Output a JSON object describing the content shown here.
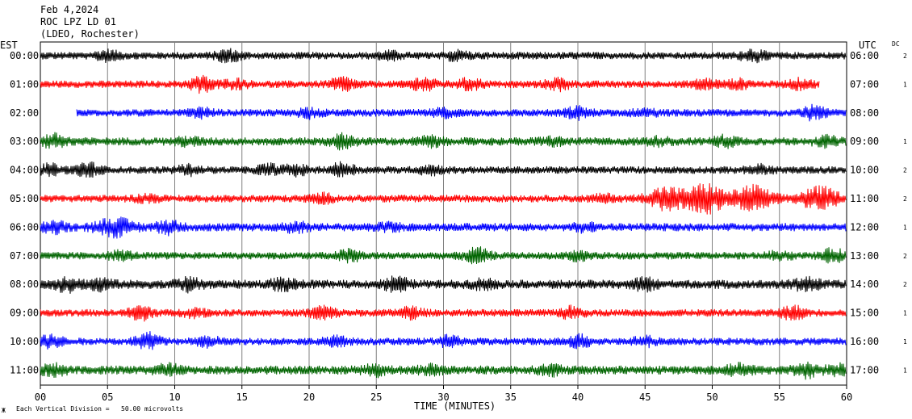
{
  "header": {
    "date": "Feb 4,2024",
    "station": "ROC LPZ LD 01",
    "network": "(LDEO, Rochester)"
  },
  "left_axis_label": "EST",
  "right_axis_label": "UTC",
  "dc_label": "DC",
  "footer_note": "Each Vertical Division =   50.00 microvolts",
  "footer_mark": "Ж",
  "colors": {
    "black": "#000000",
    "red": "#ff0000",
    "blue": "#0000ff",
    "green": "#006400",
    "grid": "#808080"
  },
  "chart_data": {
    "type": "line",
    "title": "",
    "xlabel": "TIME (MINUTES)",
    "xlim": [
      0,
      60
    ],
    "xticks": [
      "00",
      "05",
      "10",
      "15",
      "20",
      "25",
      "30",
      "35",
      "40",
      "45",
      "50",
      "55",
      "60"
    ],
    "grid": true,
    "traces": [
      {
        "est": "00:00",
        "utc": "06:00",
        "dc": "2",
        "color": "black",
        "start": 0,
        "end": 60,
        "amp": 1.0,
        "bursts": [
          [
            5,
            1.6
          ],
          [
            14,
            1.8
          ],
          [
            26,
            1.3
          ],
          [
            31,
            1.5
          ],
          [
            53,
            1.9
          ]
        ]
      },
      {
        "est": "01:00",
        "utc": "07:00",
        "dc": "1",
        "color": "red",
        "start": 0,
        "end": 58,
        "amp": 1.0,
        "bursts": [
          [
            12,
            2.2
          ],
          [
            14.5,
            1.6
          ],
          [
            22.5,
            2.0
          ],
          [
            28.5,
            2.0
          ],
          [
            32,
            1.8
          ],
          [
            38.5,
            1.8
          ],
          [
            49.5,
            1.6
          ],
          [
            52,
            1.5
          ],
          [
            56.5,
            1.6
          ]
        ]
      },
      {
        "est": "02:00",
        "utc": "08:00",
        "dc": "",
        "color": "blue",
        "start": 2.7,
        "end": 60,
        "amp": 1.0,
        "bursts": [
          [
            12,
            1.4
          ],
          [
            20,
            1.5
          ],
          [
            30,
            1.3
          ],
          [
            40,
            1.8
          ],
          [
            45,
            1.3
          ],
          [
            57.5,
            2.0
          ]
        ]
      },
      {
        "est": "03:00",
        "utc": "09:00",
        "dc": "1",
        "color": "green",
        "start": 0,
        "end": 60,
        "amp": 1.1,
        "bursts": [
          [
            1,
            2.0
          ],
          [
            11,
            1.3
          ],
          [
            22.5,
            2.0
          ],
          [
            29,
            1.5
          ],
          [
            38,
            1.3
          ],
          [
            46,
            1.3
          ],
          [
            51,
            1.7
          ],
          [
            58.5,
            1.5
          ]
        ]
      },
      {
        "est": "04:00",
        "utc": "10:00",
        "dc": "2",
        "color": "black",
        "start": 0,
        "end": 60,
        "amp": 1.0,
        "bursts": [
          [
            0.7,
            1.7
          ],
          [
            3.5,
            2.2
          ],
          [
            11,
            1.5
          ],
          [
            17,
            1.7
          ],
          [
            19,
            1.6
          ],
          [
            22.5,
            2.2
          ],
          [
            29,
            1.5
          ],
          [
            53.5,
            1.5
          ]
        ]
      },
      {
        "est": "05:00",
        "utc": "11:00",
        "dc": "2",
        "color": "red",
        "start": 0,
        "end": 60,
        "amp": 1.0,
        "bursts": [
          [
            8,
            1.3
          ],
          [
            21,
            1.5
          ],
          [
            42,
            1.3
          ],
          [
            46.5,
            3.2
          ],
          [
            49.5,
            4.0
          ],
          [
            53,
            3.6
          ],
          [
            58,
            3.2
          ]
        ]
      },
      {
        "est": "06:00",
        "utc": "12:00",
        "dc": "1",
        "color": "blue",
        "start": 0,
        "end": 60,
        "amp": 1.1,
        "bursts": [
          [
            1,
            1.8
          ],
          [
            5.5,
            2.6
          ],
          [
            9.5,
            2.0
          ],
          [
            19,
            1.5
          ],
          [
            26,
            1.3
          ],
          [
            40.5,
            1.3
          ]
        ]
      },
      {
        "est": "07:00",
        "utc": "13:00",
        "dc": "2",
        "color": "green",
        "start": 0,
        "end": 60,
        "amp": 1.0,
        "bursts": [
          [
            6,
            1.5
          ],
          [
            23,
            1.8
          ],
          [
            32.5,
            2.2
          ],
          [
            40,
            1.4
          ],
          [
            55,
            1.4
          ],
          [
            59,
            2.0
          ]
        ]
      },
      {
        "est": "08:00",
        "utc": "14:00",
        "dc": "2",
        "color": "black",
        "start": 0,
        "end": 60,
        "amp": 1.2,
        "bursts": [
          [
            2,
            2.0
          ],
          [
            4.5,
            1.6
          ],
          [
            11,
            1.8
          ],
          [
            18,
            1.7
          ],
          [
            26.5,
            2.0
          ],
          [
            33,
            1.5
          ],
          [
            45,
            1.8
          ],
          [
            57,
            2.0
          ]
        ]
      },
      {
        "est": "09:00",
        "utc": "15:00",
        "dc": "1",
        "color": "red",
        "start": 0,
        "end": 60,
        "amp": 1.0,
        "bursts": [
          [
            7.5,
            2.0
          ],
          [
            11.5,
            1.5
          ],
          [
            21,
            2.0
          ],
          [
            27.5,
            1.8
          ],
          [
            39.5,
            1.8
          ],
          [
            56,
            2.0
          ]
        ]
      },
      {
        "est": "10:00",
        "utc": "16:00",
        "dc": "1",
        "color": "blue",
        "start": 0,
        "end": 60,
        "amp": 1.0,
        "bursts": [
          [
            0.8,
            1.8
          ],
          [
            8,
            2.4
          ],
          [
            12.5,
            1.5
          ],
          [
            22,
            1.5
          ],
          [
            30.5,
            1.7
          ],
          [
            40,
            2.0
          ],
          [
            45,
            1.5
          ]
        ]
      },
      {
        "est": "11:00",
        "utc": "17:00",
        "dc": "1",
        "color": "green",
        "start": 0,
        "end": 60,
        "amp": 1.2,
        "bursts": [
          [
            1,
            1.6
          ],
          [
            9.5,
            1.6
          ],
          [
            25,
            1.6
          ],
          [
            29,
            1.5
          ],
          [
            38,
            1.5
          ],
          [
            52,
            1.6
          ],
          [
            57,
            2.0
          ],
          [
            59.5,
            1.5
          ]
        ]
      }
    ]
  }
}
